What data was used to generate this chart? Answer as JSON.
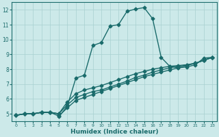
{
  "xlabel": "Humidex (Indice chaleur)",
  "bg_color": "#cce9e9",
  "line_color": "#1a6b6b",
  "marker": "D",
  "markersize": 2.5,
  "linewidth": 1.0,
  "xlim": [
    -0.5,
    23.5
  ],
  "ylim": [
    4.5,
    12.5
  ],
  "xticks": [
    0,
    1,
    2,
    3,
    4,
    5,
    6,
    7,
    8,
    9,
    10,
    11,
    12,
    13,
    14,
    15,
    16,
    17,
    18,
    19,
    20,
    21,
    22,
    23
  ],
  "yticks": [
    5,
    6,
    7,
    8,
    9,
    10,
    11,
    12
  ],
  "grid_color": "#a8d0d0",
  "curves": [
    [
      [
        0,
        4.9
      ],
      [
        1,
        5.0
      ],
      [
        2,
        5.0
      ],
      [
        3,
        5.1
      ],
      [
        4,
        5.1
      ],
      [
        5,
        5.0
      ],
      [
        5,
        4.8
      ],
      [
        6,
        5.5
      ],
      [
        7,
        7.4
      ],
      [
        8,
        7.6
      ],
      [
        9,
        9.6
      ],
      [
        10,
        9.8
      ],
      [
        11,
        10.9
      ],
      [
        12,
        11.0
      ],
      [
        13,
        11.9
      ],
      [
        14,
        12.05
      ],
      [
        15,
        12.15
      ],
      [
        16,
        11.4
      ],
      [
        17,
        8.8
      ],
      [
        18,
        8.2
      ],
      [
        19,
        8.1
      ],
      [
        20,
        8.15
      ],
      [
        21,
        8.3
      ],
      [
        22,
        8.75
      ],
      [
        23,
        8.8
      ]
    ],
    [
      [
        0,
        4.9
      ],
      [
        1,
        5.0
      ],
      [
        2,
        5.0
      ],
      [
        3,
        5.1
      ],
      [
        4,
        5.1
      ],
      [
        5,
        5.0
      ],
      [
        6,
        5.8
      ],
      [
        7,
        6.35
      ],
      [
        8,
        6.6
      ],
      [
        9,
        6.75
      ],
      [
        10,
        6.9
      ],
      [
        11,
        7.1
      ],
      [
        12,
        7.3
      ],
      [
        13,
        7.5
      ],
      [
        14,
        7.7
      ],
      [
        15,
        7.85
      ],
      [
        16,
        8.0
      ],
      [
        17,
        8.1
      ],
      [
        18,
        8.2
      ],
      [
        19,
        8.25
      ],
      [
        20,
        8.3
      ],
      [
        21,
        8.4
      ],
      [
        22,
        8.6
      ],
      [
        23,
        8.8
      ]
    ],
    [
      [
        0,
        4.9
      ],
      [
        1,
        5.0
      ],
      [
        2,
        5.0
      ],
      [
        3,
        5.1
      ],
      [
        4,
        5.1
      ],
      [
        5,
        4.85
      ],
      [
        6,
        5.4
      ],
      [
        7,
        5.9
      ],
      [
        8,
        6.1
      ],
      [
        9,
        6.3
      ],
      [
        10,
        6.5
      ],
      [
        11,
        6.7
      ],
      [
        12,
        6.9
      ],
      [
        13,
        7.1
      ],
      [
        14,
        7.3
      ],
      [
        15,
        7.5
      ],
      [
        16,
        7.65
      ],
      [
        17,
        7.8
      ],
      [
        18,
        7.95
      ],
      [
        19,
        8.1
      ],
      [
        20,
        8.25
      ],
      [
        21,
        8.4
      ],
      [
        22,
        8.6
      ],
      [
        23,
        8.8
      ]
    ],
    [
      [
        0,
        4.9
      ],
      [
        1,
        5.0
      ],
      [
        2,
        5.0
      ],
      [
        3,
        5.1
      ],
      [
        4,
        5.1
      ],
      [
        5,
        5.0
      ],
      [
        6,
        5.6
      ],
      [
        7,
        6.1
      ],
      [
        8,
        6.3
      ],
      [
        9,
        6.5
      ],
      [
        10,
        6.6
      ],
      [
        11,
        6.8
      ],
      [
        12,
        7.0
      ],
      [
        13,
        7.2
      ],
      [
        14,
        7.45
      ],
      [
        15,
        7.6
      ],
      [
        16,
        7.8
      ],
      [
        17,
        7.95
      ],
      [
        18,
        8.1
      ],
      [
        19,
        8.2
      ],
      [
        20,
        8.3
      ],
      [
        21,
        8.4
      ],
      [
        22,
        8.6
      ],
      [
        23,
        8.8
      ]
    ]
  ]
}
